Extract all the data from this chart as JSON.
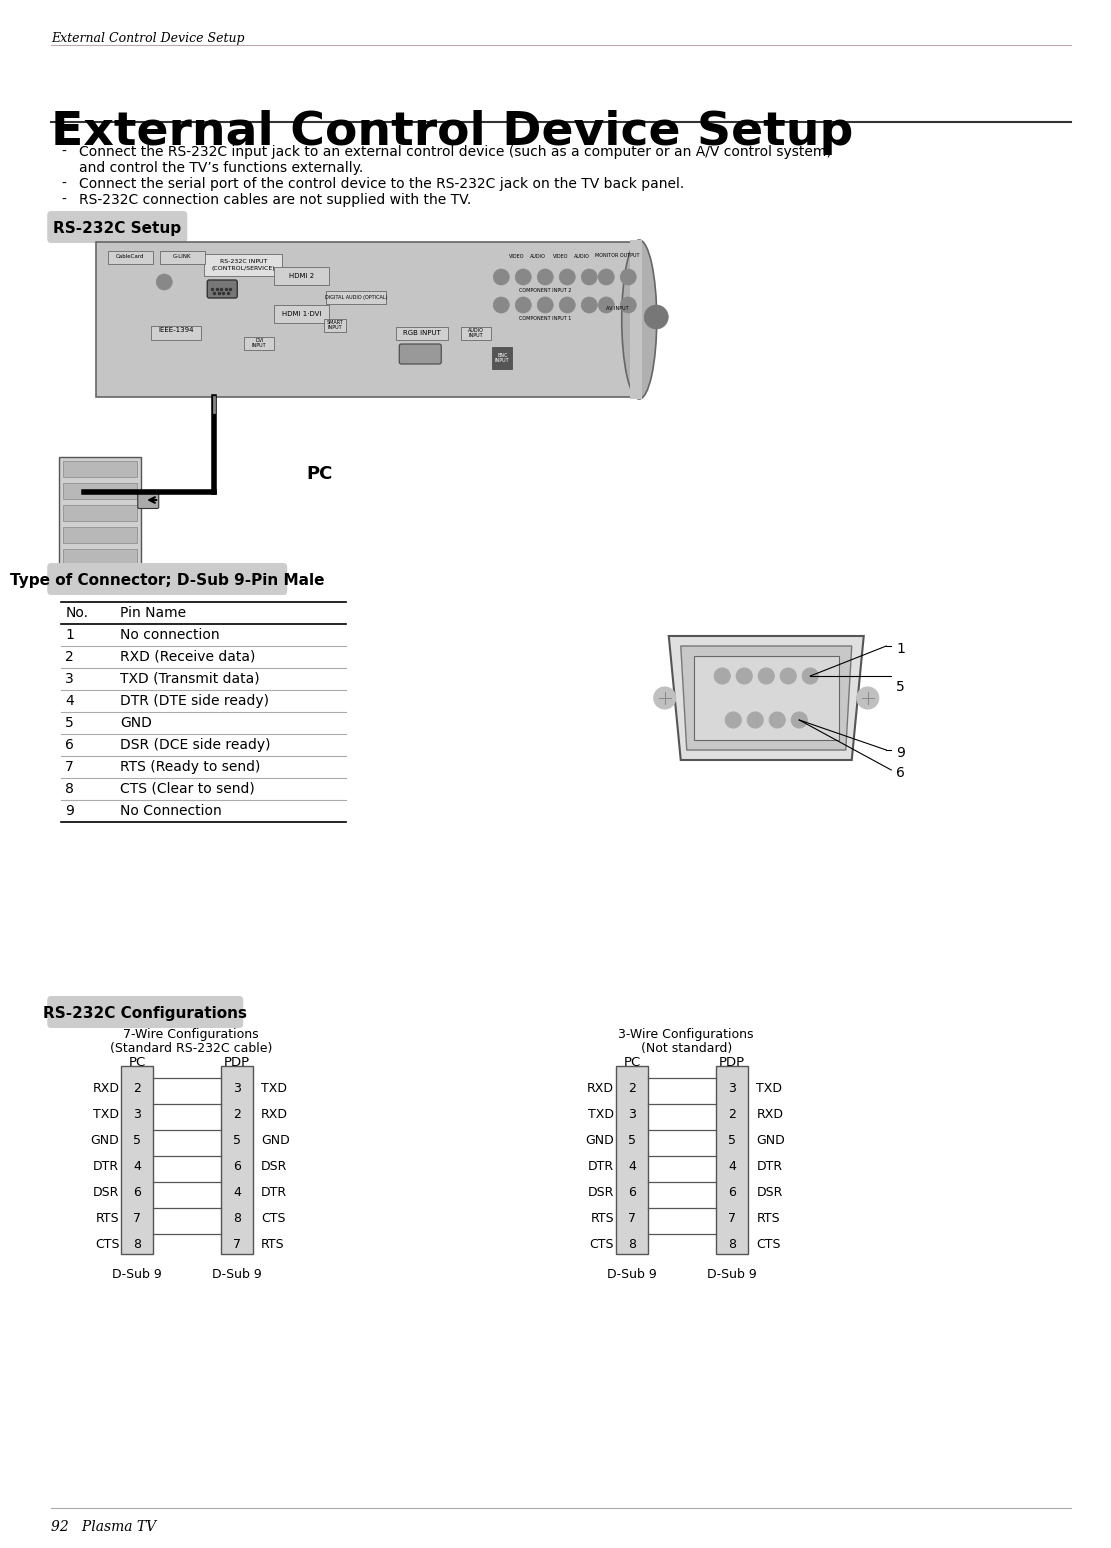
{
  "page_header": "External Control Device Setup",
  "main_title": "External Control Device Setup",
  "bullet_line1": "Connect the RS-232C input jack to an external control device (such as a computer or an A/V control system)",
  "bullet_line1b": "and control the TV’s functions externally.",
  "bullet_line2": "Connect the serial port of the control device to the RS-232C jack on the TV back panel.",
  "bullet_line3": "RS-232C connection cables are not supplied with the TV.",
  "section1_label": "RS-232C Setup",
  "pc_label": "PC",
  "section2_label": "Type of Connector; D-Sub 9-Pin Male",
  "table_headers": [
    "No.",
    "Pin Name"
  ],
  "table_rows": [
    [
      "1",
      "No connection"
    ],
    [
      "2",
      "RXD (Receive data)"
    ],
    [
      "3",
      "TXD (Transmit data)"
    ],
    [
      "4",
      "DTR (DTE side ready)"
    ],
    [
      "5",
      "GND"
    ],
    [
      "6",
      "DSR (DCE side ready)"
    ],
    [
      "7",
      "RTS (Ready to send)"
    ],
    [
      "8",
      "CTS (Clear to send)"
    ],
    [
      "9",
      "No Connection"
    ]
  ],
  "section3_label": "RS-232C Configurations",
  "wire7_title": "7-Wire Configurations",
  "wire7_subtitle": "(Standard RS-232C cable)",
  "wire3_title": "3-Wire Configurations",
  "wire3_subtitle": "(Not standard)",
  "wire7_pc_pins": [
    "RXD",
    "TXD",
    "GND",
    "DTR",
    "DSR",
    "RTS",
    "CTS"
  ],
  "wire7_pc_nums": [
    "2",
    "3",
    "5",
    "4",
    "6",
    "7",
    "8"
  ],
  "wire7_pdp_nums": [
    "3",
    "2",
    "5",
    "6",
    "4",
    "8",
    "7"
  ],
  "wire7_pdp_pins": [
    "TXD",
    "RXD",
    "GND",
    "DSR",
    "DTR",
    "CTS",
    "RTS"
  ],
  "wire3_pc_pins": [
    "RXD",
    "TXD",
    "GND",
    "DTR",
    "DSR",
    "RTS",
    "CTS"
  ],
  "wire3_pc_nums": [
    "2",
    "3",
    "5",
    "4",
    "6",
    "7",
    "8"
  ],
  "wire3_pdp_nums": [
    "3",
    "2",
    "5",
    "4",
    "6",
    "7",
    "8"
  ],
  "wire3_pdp_pins": [
    "TXD",
    "RXD",
    "GND",
    "DTR",
    "DSR",
    "RTS",
    "CTS"
  ],
  "footer_text": "92   Plasma TV",
  "bg_color": "#ffffff",
  "section_bg": "#cccccc",
  "table_line_color": "#aaaaaa"
}
